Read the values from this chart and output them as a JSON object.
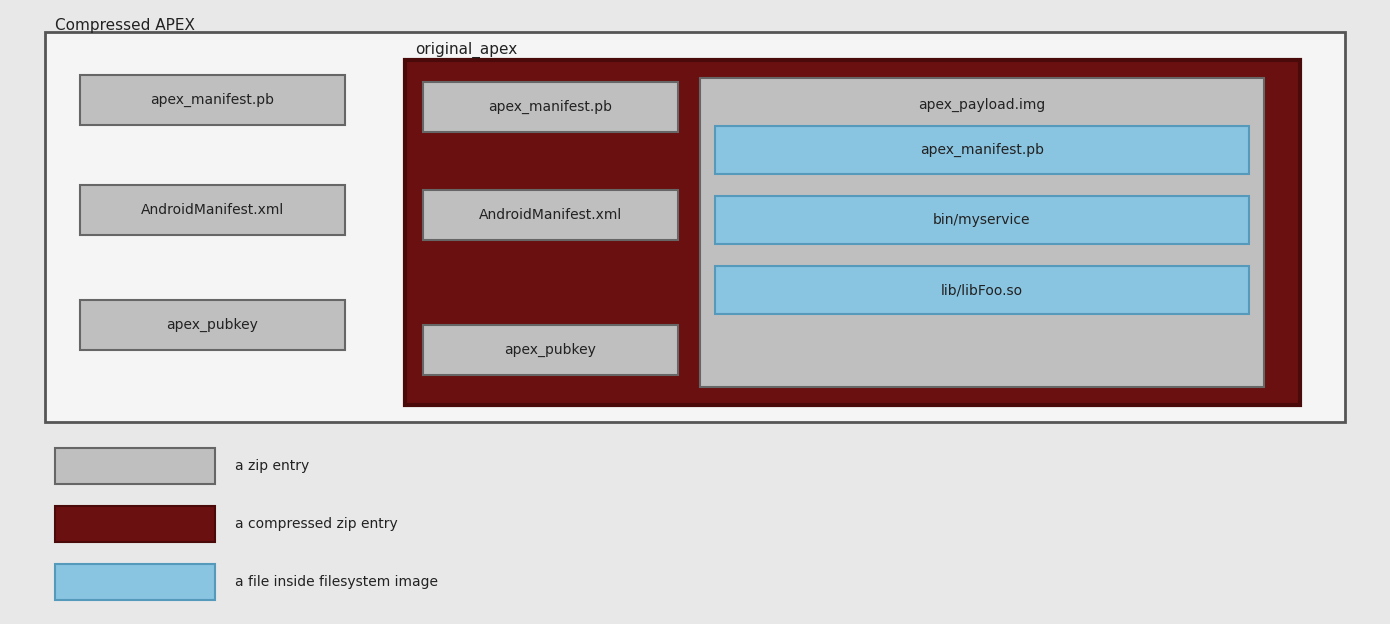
{
  "title": "Compressed APEX",
  "bg_color": "#e8e8e8",
  "outer_box_color": "#f5f5f5",
  "outer_box_edge": "#555555",
  "zip_entry_color": "#c0bfbf",
  "zip_entry_edge": "#666666",
  "compressed_zip_color": "#6b1010",
  "compressed_zip_edge": "#4a0a0a",
  "filesystem_color": "#89c4e1",
  "filesystem_edge": "#5599bb",
  "text_color": "#222222",
  "outer_label": "Compressed APEX",
  "inner_label": "original_apex",
  "left_boxes": [
    "apex_manifest.pb",
    "AndroidManifest.xml",
    "apex_pubkey"
  ],
  "middle_boxes": [
    "apex_manifest.pb",
    "AndroidManifest.xml",
    "apex_pubkey"
  ],
  "right_label": "apex_payload.img",
  "right_boxes": [
    "apex_manifest.pb",
    "bin/myservice",
    "lib/libFoo.so"
  ],
  "legend": [
    {
      "label": "a zip entry",
      "color": "#c0bfbf",
      "edge": "#666666"
    },
    {
      "label": "a compressed zip entry",
      "color": "#6b1010",
      "edge": "#4a0a0a"
    },
    {
      "label": "a file inside filesystem image",
      "color": "#89c4e1",
      "edge": "#5599bb"
    }
  ],
  "font_size_label": 11,
  "font_size_box": 10,
  "font_size_title": 11
}
